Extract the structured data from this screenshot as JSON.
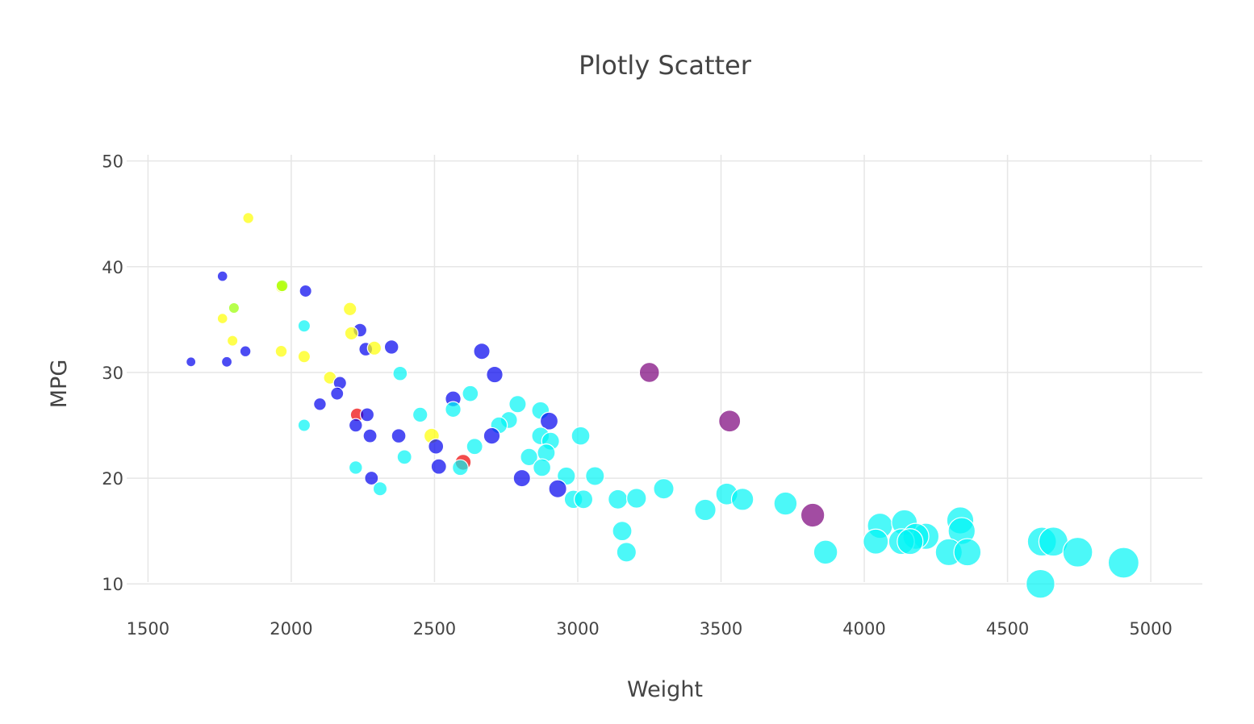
{
  "chart_data": {
    "type": "scatter",
    "title": "Plotly Scatter",
    "xlabel": "Weight",
    "ylabel": "MPG",
    "xlim": [
      1420,
      5180
    ],
    "ylim": [
      7.5,
      51.5
    ],
    "x_ticks": [
      1500,
      2000,
      2500,
      3000,
      3500,
      4000,
      4500,
      5000
    ],
    "y_ticks": [
      10,
      20,
      30,
      40,
      50
    ],
    "grid": true,
    "legend": "none",
    "marker_opacity": 0.7,
    "colors": {
      "blue": "#0000ee",
      "cyan": "#00f5f5",
      "yellow": "#ffff00",
      "red": "#ee0000",
      "purple": "#7a007a",
      "green": "#99ff00"
    },
    "points": [
      {
        "x": 1850,
        "y": 44.6,
        "color": "yellow"
      },
      {
        "x": 1760,
        "y": 39.1,
        "color": "blue"
      },
      {
        "x": 1965,
        "y": 38.1,
        "color": "yellow"
      },
      {
        "x": 1968,
        "y": 38.2,
        "color": "green"
      },
      {
        "x": 2050,
        "y": 37.7,
        "color": "blue"
      },
      {
        "x": 1800,
        "y": 36.1,
        "color": "green"
      },
      {
        "x": 2205,
        "y": 36.0,
        "color": "yellow"
      },
      {
        "x": 1760,
        "y": 35.1,
        "color": "yellow"
      },
      {
        "x": 2045,
        "y": 34.4,
        "color": "cyan"
      },
      {
        "x": 2240,
        "y": 34.0,
        "color": "blue"
      },
      {
        "x": 2210,
        "y": 33.7,
        "color": "yellow"
      },
      {
        "x": 1795,
        "y": 33.0,
        "color": "yellow"
      },
      {
        "x": 2350,
        "y": 32.4,
        "color": "blue"
      },
      {
        "x": 2260,
        "y": 32.2,
        "color": "blue"
      },
      {
        "x": 2290,
        "y": 32.3,
        "color": "yellow"
      },
      {
        "x": 1965,
        "y": 32.0,
        "color": "yellow"
      },
      {
        "x": 1840,
        "y": 32.0,
        "color": "blue"
      },
      {
        "x": 2665,
        "y": 32.0,
        "color": "blue"
      },
      {
        "x": 2045,
        "y": 31.5,
        "color": "yellow"
      },
      {
        "x": 1650,
        "y": 31.0,
        "color": "blue"
      },
      {
        "x": 1775,
        "y": 31.0,
        "color": "blue"
      },
      {
        "x": 3250,
        "y": 30.0,
        "color": "purple"
      },
      {
        "x": 2380,
        "y": 29.9,
        "color": "cyan"
      },
      {
        "x": 2710,
        "y": 29.8,
        "color": "blue"
      },
      {
        "x": 2135,
        "y": 29.5,
        "color": "yellow"
      },
      {
        "x": 2170,
        "y": 29.0,
        "color": "blue"
      },
      {
        "x": 2625,
        "y": 28.0,
        "color": "cyan"
      },
      {
        "x": 2160,
        "y": 28.0,
        "color": "blue"
      },
      {
        "x": 2565,
        "y": 27.5,
        "color": "blue"
      },
      {
        "x": 2100,
        "y": 27.0,
        "color": "blue"
      },
      {
        "x": 2790,
        "y": 27.0,
        "color": "cyan"
      },
      {
        "x": 2565,
        "y": 26.5,
        "color": "cyan"
      },
      {
        "x": 2870,
        "y": 26.4,
        "color": "cyan"
      },
      {
        "x": 2230,
        "y": 26.0,
        "color": "red"
      },
      {
        "x": 2265,
        "y": 26.0,
        "color": "blue"
      },
      {
        "x": 2450,
        "y": 26.0,
        "color": "cyan"
      },
      {
        "x": 2760,
        "y": 25.5,
        "color": "cyan"
      },
      {
        "x": 3530,
        "y": 25.4,
        "color": "purple"
      },
      {
        "x": 2900,
        "y": 25.4,
        "color": "blue"
      },
      {
        "x": 2725,
        "y": 25.0,
        "color": "cyan"
      },
      {
        "x": 2045,
        "y": 25.0,
        "color": "cyan"
      },
      {
        "x": 2225,
        "y": 25.0,
        "color": "blue"
      },
      {
        "x": 2490,
        "y": 24.0,
        "color": "yellow"
      },
      {
        "x": 2275,
        "y": 24.0,
        "color": "blue"
      },
      {
        "x": 2375,
        "y": 24.0,
        "color": "blue"
      },
      {
        "x": 2700,
        "y": 24.0,
        "color": "blue"
      },
      {
        "x": 3010,
        "y": 24.0,
        "color": "cyan"
      },
      {
        "x": 2870,
        "y": 24.0,
        "color": "cyan"
      },
      {
        "x": 2905,
        "y": 23.5,
        "color": "cyan"
      },
      {
        "x": 2640,
        "y": 23.0,
        "color": "cyan"
      },
      {
        "x": 2505,
        "y": 23.0,
        "color": "blue"
      },
      {
        "x": 2890,
        "y": 22.4,
        "color": "cyan"
      },
      {
        "x": 2395,
        "y": 22.0,
        "color": "cyan"
      },
      {
        "x": 2830,
        "y": 22.0,
        "color": "cyan"
      },
      {
        "x": 2600,
        "y": 21.5,
        "color": "red"
      },
      {
        "x": 2515,
        "y": 21.1,
        "color": "blue"
      },
      {
        "x": 2590,
        "y": 21.0,
        "color": "cyan"
      },
      {
        "x": 2225,
        "y": 21.0,
        "color": "cyan"
      },
      {
        "x": 2875,
        "y": 21.0,
        "color": "cyan"
      },
      {
        "x": 2960,
        "y": 20.2,
        "color": "cyan"
      },
      {
        "x": 3060,
        "y": 20.2,
        "color": "cyan"
      },
      {
        "x": 2805,
        "y": 20.0,
        "color": "blue"
      },
      {
        "x": 2280,
        "y": 20.0,
        "color": "blue"
      },
      {
        "x": 2310,
        "y": 19.0,
        "color": "cyan"
      },
      {
        "x": 2930,
        "y": 19.0,
        "color": "blue"
      },
      {
        "x": 3300,
        "y": 19.0,
        "color": "cyan"
      },
      {
        "x": 3520,
        "y": 18.5,
        "color": "cyan"
      },
      {
        "x": 3575,
        "y": 18.0,
        "color": "cyan"
      },
      {
        "x": 2985,
        "y": 18.0,
        "color": "cyan"
      },
      {
        "x": 3020,
        "y": 18.0,
        "color": "cyan"
      },
      {
        "x": 3140,
        "y": 18.0,
        "color": "cyan"
      },
      {
        "x": 3205,
        "y": 18.1,
        "color": "cyan"
      },
      {
        "x": 3725,
        "y": 17.6,
        "color": "cyan"
      },
      {
        "x": 3445,
        "y": 17.0,
        "color": "cyan"
      },
      {
        "x": 3820,
        "y": 16.5,
        "color": "purple"
      },
      {
        "x": 4055,
        "y": 15.5,
        "color": "cyan"
      },
      {
        "x": 4140,
        "y": 15.8,
        "color": "cyan"
      },
      {
        "x": 4335,
        "y": 16.0,
        "color": "cyan"
      },
      {
        "x": 4340,
        "y": 15.0,
        "color": "cyan"
      },
      {
        "x": 3155,
        "y": 15.0,
        "color": "cyan"
      },
      {
        "x": 4215,
        "y": 14.5,
        "color": "cyan"
      },
      {
        "x": 4180,
        "y": 14.5,
        "color": "cyan"
      },
      {
        "x": 4040,
        "y": 14.0,
        "color": "cyan"
      },
      {
        "x": 4130,
        "y": 14.0,
        "color": "cyan"
      },
      {
        "x": 4160,
        "y": 14.0,
        "color": "cyan"
      },
      {
        "x": 4620,
        "y": 14.0,
        "color": "cyan"
      },
      {
        "x": 4660,
        "y": 14.0,
        "color": "cyan"
      },
      {
        "x": 3170,
        "y": 13.0,
        "color": "cyan"
      },
      {
        "x": 3865,
        "y": 13.0,
        "color": "cyan"
      },
      {
        "x": 4295,
        "y": 13.0,
        "color": "cyan"
      },
      {
        "x": 4360,
        "y": 13.0,
        "color": "cyan"
      },
      {
        "x": 4745,
        "y": 13.0,
        "color": "cyan"
      },
      {
        "x": 4905,
        "y": 12.0,
        "color": "cyan"
      },
      {
        "x": 4615,
        "y": 10.0,
        "color": "cyan"
      }
    ]
  }
}
